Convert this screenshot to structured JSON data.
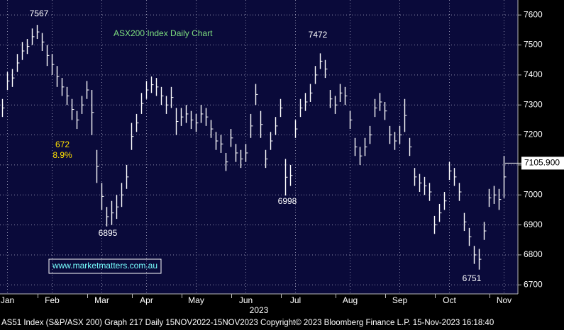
{
  "chart_data": {
    "type": "hilo",
    "title": "ASX200 Index Daily Chart",
    "color": "#ffffff",
    "categories": [
      null,
      "Jan",
      null,
      null,
      null,
      null,
      null,
      null,
      null,
      null,
      "Feb",
      null,
      null,
      null,
      null,
      null,
      null,
      null,
      null,
      null,
      "Mar",
      null,
      null,
      null,
      null,
      null,
      null,
      null,
      null,
      "Apr",
      null,
      null,
      null,
      null,
      null,
      null,
      null,
      null,
      null,
      "May",
      null,
      null,
      null,
      null,
      null,
      null,
      null,
      null,
      null,
      "Jun",
      null,
      null,
      null,
      null,
      null,
      null,
      null,
      null,
      null,
      "Jul",
      null,
      null,
      null,
      null,
      null,
      null,
      null,
      null,
      null,
      null,
      "Aug",
      null,
      null,
      null,
      null,
      null,
      null,
      null,
      null,
      null,
      "Sep",
      null,
      null,
      null,
      null,
      null,
      null,
      null,
      null,
      null,
      "Oct",
      null,
      null,
      null,
      null,
      null,
      null,
      null,
      null,
      null,
      null,
      "Nov"
    ],
    "high": [
      7320,
      7410,
      7420,
      7470,
      7510,
      7520,
      7555,
      7567,
      7540,
      7500,
      7470,
      7430,
      7390,
      7360,
      7320,
      7280,
      7330,
      7380,
      7350,
      7150,
      7040,
      6960,
      6980,
      7000,
      7040,
      7100,
      7240,
      7270,
      7340,
      7380,
      7395,
      7390,
      7360,
      7330,
      7360,
      7290,
      7290,
      7300,
      7280,
      7270,
      7300,
      7290,
      7250,
      7210,
      7200,
      7140,
      7220,
      7170,
      7150,
      7170,
      7270,
      7370,
      7280,
      7150,
      7210,
      7260,
      7320,
      7120,
      7100,
      7250,
      7320,
      7340,
      7370,
      7430,
      7472,
      7450,
      7350,
      7330,
      7370,
      7360,
      7280,
      7190,
      7160,
      7190,
      7230,
      7320,
      7340,
      7310,
      7230,
      7210,
      7230,
      7320,
      7190,
      7090,
      7070,
      7060,
      7040,
      6930,
      6970,
      7010,
      7110,
      7090,
      7040,
      6940,
      6890,
      6830,
      6820,
      6910,
      7020,
      7030,
      7020,
      7130
    ],
    "low": [
      7260,
      7350,
      7360,
      7410,
      7450,
      7470,
      7500,
      7520,
      7480,
      7430,
      7400,
      7360,
      7330,
      7300,
      7250,
      7220,
      7270,
      7320,
      7200,
      7040,
      6950,
      6895,
      6900,
      6920,
      6960,
      7020,
      7150,
      7210,
      7270,
      7320,
      7340,
      7330,
      7300,
      7270,
      7290,
      7200,
      7230,
      7240,
      7220,
      7210,
      7240,
      7230,
      7190,
      7150,
      7140,
      7080,
      7160,
      7110,
      7090,
      7110,
      7190,
      7300,
      7190,
      7090,
      7150,
      7200,
      7260,
      6998,
      7030,
      7190,
      7260,
      7280,
      7310,
      7370,
      7420,
      7390,
      7290,
      7270,
      7310,
      7300,
      7220,
      7130,
      7100,
      7130,
      7170,
      7260,
      7280,
      7250,
      7170,
      7150,
      7170,
      7210,
      7130,
      7030,
      7010,
      7000,
      6980,
      6870,
      6910,
      6950,
      7050,
      7030,
      6980,
      6880,
      6830,
      6770,
      6751,
      6850,
      6960,
      6970,
      6950,
      6990
    ],
    "x_label": "2023",
    "ylim": [
      6670,
      7650
    ],
    "yticks": [
      6700,
      6800,
      6900,
      7000,
      7100,
      7200,
      7300,
      7400,
      7500,
      7600
    ],
    "grid": true,
    "last_price": {
      "value": 7105.9,
      "label": "7105.900"
    },
    "annotations": [
      {
        "text": "7567"
      },
      {
        "text": "7472"
      },
      {
        "text": "6998"
      },
      {
        "text": "6895"
      },
      {
        "text": "6751"
      },
      {
        "text": "672"
      },
      {
        "text": "8.9%"
      },
      {
        "text": "www.marketmatters.com.au"
      }
    ],
    "footer": "AS51 Index (S&P/ASX 200) Graph 217  Daily 15NOV2022-15NOV2023 Copyright© 2023 Bloomberg Finance L.P. 15-Nov-2023 16:18:40"
  }
}
